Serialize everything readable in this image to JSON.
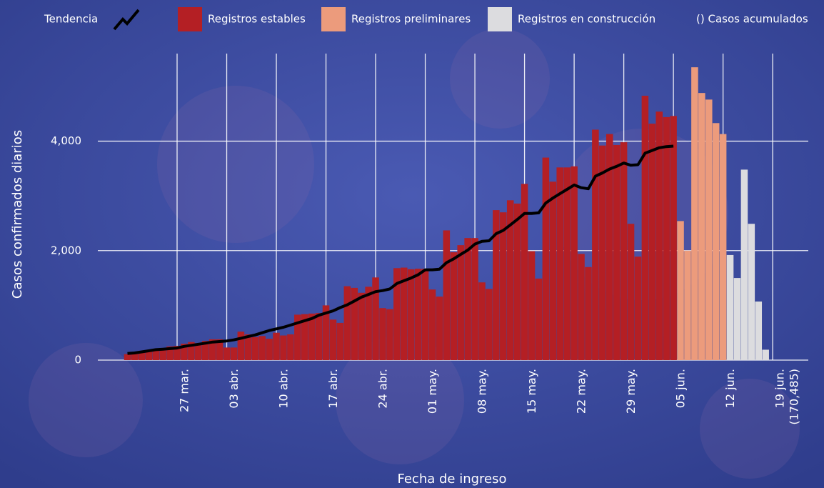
{
  "chart_data": {
    "type": "bar",
    "y_label": "Casos confirmados diarios",
    "x_label": "Fecha de ingreso",
    "legend_note": "() Casos acumulados",
    "total_label": "(170,485)",
    "categories": [
      null,
      null,
      null,
      null,
      null,
      null,
      null,
      "27 mar.",
      null,
      null,
      null,
      null,
      null,
      null,
      "03 abr.",
      null,
      null,
      null,
      null,
      null,
      null,
      "10 abr.",
      null,
      null,
      null,
      null,
      null,
      null,
      "17 abr.",
      null,
      null,
      null,
      null,
      null,
      null,
      "24 abr.",
      null,
      null,
      null,
      null,
      null,
      null,
      "01 may.",
      null,
      null,
      null,
      null,
      null,
      null,
      "08 may.",
      null,
      null,
      null,
      null,
      null,
      null,
      "15 may.",
      null,
      null,
      null,
      null,
      null,
      null,
      "22 may.",
      null,
      null,
      null,
      null,
      null,
      null,
      "29 may.",
      null,
      null,
      null,
      null,
      null,
      null,
      "05 jun.",
      null,
      null,
      null,
      null,
      null,
      null,
      "12 jun.",
      null,
      null,
      null,
      null,
      null,
      null,
      "19 jun."
    ],
    "ylim": [
      0,
      5600
    ],
    "yticks": [
      0,
      {
        "value": 2000,
        "label": "2,000"
      },
      {
        "value": 4000,
        "label": "4,000"
      }
    ],
    "grid": true,
    "series": [
      {
        "name": "Registros estables",
        "kind": "bar",
        "color": "#b41f24",
        "values": [
          110,
          130,
          150,
          170,
          200,
          220,
          250,
          260,
          300,
          330,
          310,
          350,
          380,
          380,
          230,
          230,
          520,
          470,
          420,
          440,
          390,
          500,
          450,
          470,
          830,
          840,
          850,
          860,
          1000,
          740,
          680,
          1350,
          1320,
          1230,
          1340,
          1510,
          950,
          930,
          1680,
          1690,
          1660,
          1670,
          1670,
          1290,
          1160,
          2370,
          1970,
          2100,
          2230,
          2230,
          1420,
          1300,
          2740,
          2700,
          2920,
          2860,
          3220,
          1990,
          1490,
          3700,
          3260,
          3520,
          3520,
          3540,
          1940,
          1700,
          4210,
          3920,
          4130,
          3930,
          3980,
          2490,
          1890,
          4830,
          4320,
          4540,
          4440,
          4460,
          null,
          null,
          null,
          null,
          null,
          null,
          null,
          null,
          null,
          null,
          null,
          null,
          null,
          null
        ]
      },
      {
        "name": "Registros preliminares",
        "kind": "bar",
        "color": "#ec9b7c",
        "values": [
          null,
          null,
          null,
          null,
          null,
          null,
          null,
          null,
          null,
          null,
          null,
          null,
          null,
          null,
          null,
          null,
          null,
          null,
          null,
          null,
          null,
          null,
          null,
          null,
          null,
          null,
          null,
          null,
          null,
          null,
          null,
          null,
          null,
          null,
          null,
          null,
          null,
          null,
          null,
          null,
          null,
          null,
          null,
          null,
          null,
          null,
          null,
          null,
          null,
          null,
          null,
          null,
          null,
          null,
          null,
          null,
          null,
          null,
          null,
          null,
          null,
          null,
          null,
          null,
          null,
          null,
          null,
          null,
          null,
          null,
          null,
          null,
          null,
          null,
          null,
          null,
          null,
          null,
          2540,
          2000,
          5350,
          4880,
          4760,
          4330,
          4130,
          null,
          null,
          null,
          null,
          null,
          null,
          null
        ]
      },
      {
        "name": "Registros en construcción",
        "kind": "bar",
        "color": "#dcdcdf",
        "values": [
          null,
          null,
          null,
          null,
          null,
          null,
          null,
          null,
          null,
          null,
          null,
          null,
          null,
          null,
          null,
          null,
          null,
          null,
          null,
          null,
          null,
          null,
          null,
          null,
          null,
          null,
          null,
          null,
          null,
          null,
          null,
          null,
          null,
          null,
          null,
          null,
          null,
          null,
          null,
          null,
          null,
          null,
          null,
          null,
          null,
          null,
          null,
          null,
          null,
          null,
          null,
          null,
          null,
          null,
          null,
          null,
          null,
          null,
          null,
          null,
          null,
          null,
          null,
          null,
          null,
          null,
          null,
          null,
          null,
          null,
          null,
          null,
          null,
          null,
          null,
          null,
          null,
          null,
          null,
          null,
          null,
          null,
          null,
          null,
          null,
          1920,
          1500,
          3480,
          2490,
          1070,
          190,
          null
        ]
      },
      {
        "name": "Tendencia",
        "kind": "line",
        "color": "#000000",
        "values": [
          120,
          130,
          150,
          170,
          190,
          200,
          210,
          220,
          250,
          270,
          290,
          310,
          330,
          340,
          350,
          370,
          400,
          430,
          460,
          500,
          540,
          570,
          600,
          640,
          680,
          720,
          760,
          820,
          860,
          900,
          960,
          1010,
          1080,
          1150,
          1200,
          1250,
          1270,
          1300,
          1400,
          1450,
          1500,
          1560,
          1650,
          1650,
          1660,
          1780,
          1850,
          1930,
          2010,
          2120,
          2170,
          2180,
          2310,
          2370,
          2470,
          2570,
          2680,
          2680,
          2690,
          2870,
          2960,
          3040,
          3120,
          3200,
          3150,
          3130,
          3360,
          3420,
          3490,
          3540,
          3600,
          3560,
          3570,
          3780,
          3830,
          3880,
          3900,
          3910,
          null,
          null,
          null,
          null,
          null,
          null,
          null,
          null,
          null,
          null,
          null,
          null,
          null,
          null
        ]
      }
    ]
  }
}
